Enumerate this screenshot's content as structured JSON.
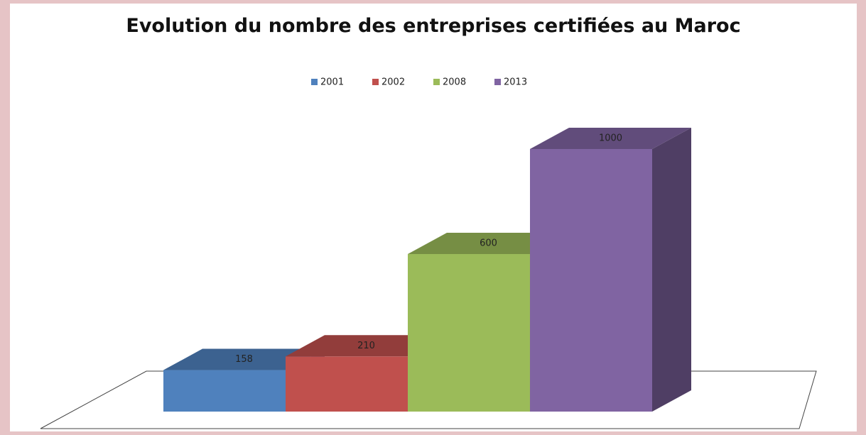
{
  "chart_data": {
    "type": "bar3d",
    "title": "Evolution du nombre des entreprises certifiées au Maroc",
    "legend": "top",
    "series": [
      {
        "name": "2001",
        "color": "#4f81bd",
        "values": [
          158
        ]
      },
      {
        "name": "2002",
        "color": "#c0504d",
        "values": [
          210
        ]
      },
      {
        "name": "2008",
        "color": "#9bbb59",
        "values": [
          600
        ]
      },
      {
        "name": "2013",
        "color": "#8064a2",
        "values": [
          1000
        ]
      }
    ]
  }
}
